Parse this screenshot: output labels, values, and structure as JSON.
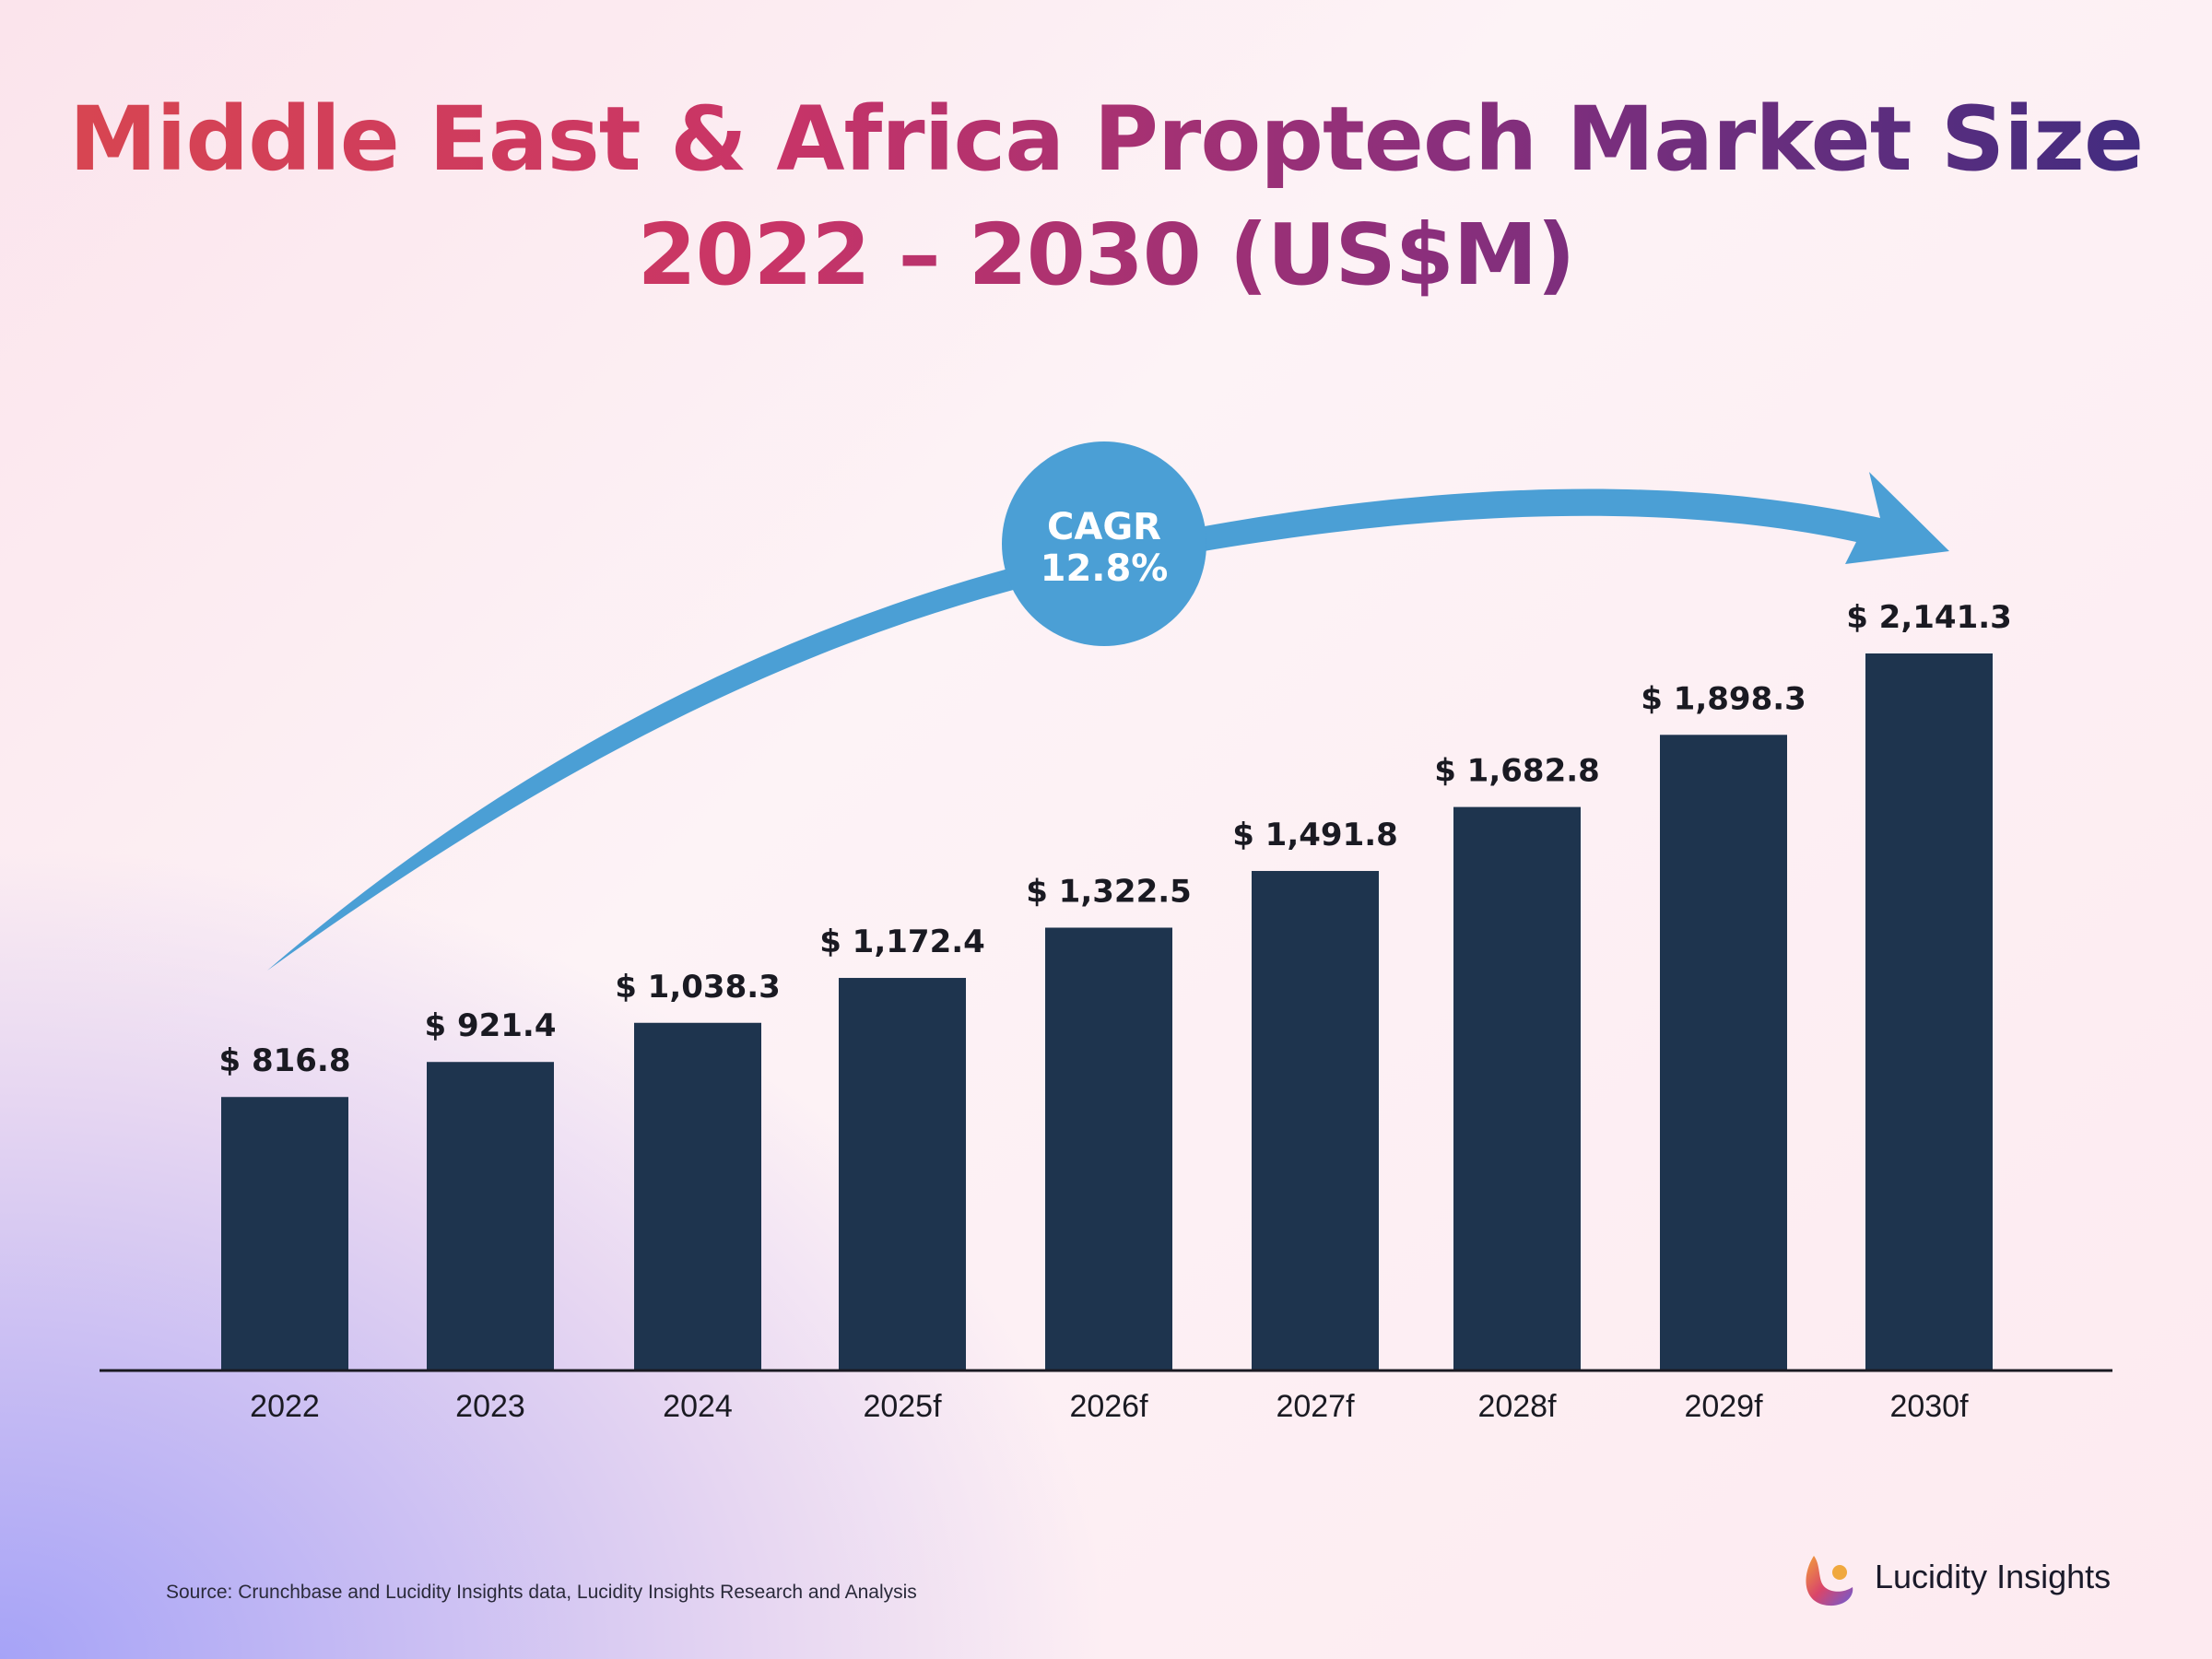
{
  "title_line1": "Middle East & Africa Proptech Market Size",
  "title_line2": "2022 – 2030 (US$M)",
  "cagr_label": "CAGR",
  "cagr_value": "12.8%",
  "source": "Source: Crunchbase and Lucidity Insights data, Lucidity Insights Research and Analysis",
  "brand_name": "Lucidity Insights",
  "colors": {
    "bar": "#1e344e",
    "arrow": "#4b9fd5",
    "label": "#1a1a22",
    "axis": "#1a1a22"
  },
  "chart_data": {
    "type": "bar",
    "categories": [
      "2022",
      "2023",
      "2024",
      "2025f",
      "2026f",
      "2027f",
      "2028f",
      "2029f",
      "2030f"
    ],
    "values": [
      816.8,
      921.4,
      1038.3,
      1172.4,
      1322.5,
      1491.8,
      1682.8,
      1898.3,
      2141.3
    ],
    "data_labels": [
      "$ 816.8",
      "$ 921.4",
      "$ 1,038.3",
      "$ 1,172.4",
      "$ 1,322.5",
      "$ 1,491.8",
      "$ 1,682.8",
      "$ 1,898.3",
      "$ 2,141.3"
    ],
    "title": "Middle East & Africa Proptech Market Size 2022 – 2030 (US$M)",
    "xlabel": "",
    "ylabel": "",
    "ylim": [
      0,
      2350
    ],
    "grid": false,
    "legend": "none",
    "annotation": "CAGR 12.8%"
  }
}
